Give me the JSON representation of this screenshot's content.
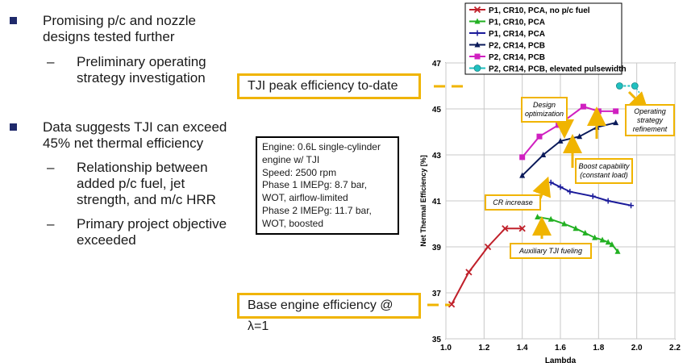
{
  "bullets": {
    "b1": {
      "line1": "Promising p/c and nozzle",
      "line2": "designs tested further"
    },
    "b1a": {
      "line1": "Preliminary operating",
      "line2": "strategy investigation"
    },
    "b2": {
      "line1": "Data suggests TJI can exceed",
      "line2": "45% net thermal efficiency"
    },
    "b2a": {
      "line1": "Relationship between",
      "line2": "added p/c fuel, jet",
      "line3": "strength, and m/c HRR"
    },
    "b2b": {
      "line1": "Primary project objective",
      "line2": "exceeded"
    }
  },
  "dash": "–",
  "specbox": {
    "lines": [
      "Engine: 0.6L single-cylinder",
      "engine w/ TJI",
      "Speed: 2500 rpm",
      "Phase 1 IMEPg: 8.7 bar,",
      "WOT, airflow-limited",
      "Phase 2 IMEPg: 11.7 bar,",
      "WOT, boosted"
    ]
  },
  "callouts": {
    "peak": "TJI peak efficiency to-date",
    "base": "Base engine efficiency @ λ=1"
  },
  "colors": {
    "accent": "#f0b400",
    "bullet": "#1f2a6b"
  },
  "chart_data": {
    "type": "line",
    "xlabel": "Lambda",
    "ylabel": "Net Thermal Efficiency [%]",
    "xlim": [
      1.0,
      2.2
    ],
    "ylim": [
      35,
      47
    ],
    "xticks": [
      "1.0",
      "1.2",
      "1.4",
      "1.6",
      "1.8",
      "2.0",
      "2.2"
    ],
    "yticks": [
      "35",
      "37",
      "39",
      "41",
      "43",
      "45",
      "47"
    ],
    "legend_position": "top",
    "series": [
      {
        "name": "P1, CR10, PCA, no p/c fuel",
        "color": "#c0202a",
        "marker": "x",
        "x": [
          1.03,
          1.12,
          1.22,
          1.31,
          1.4
        ],
        "y": [
          36.5,
          37.9,
          39.0,
          39.8,
          39.8
        ]
      },
      {
        "name": "P1, CR10, PCA",
        "color": "#22b022",
        "marker": "triangle",
        "x": [
          1.48,
          1.55,
          1.62,
          1.68,
          1.73,
          1.78,
          1.82,
          1.85,
          1.87,
          1.9
        ],
        "y": [
          40.3,
          40.2,
          40.0,
          39.8,
          39.6,
          39.4,
          39.3,
          39.2,
          39.1,
          38.8
        ]
      },
      {
        "name": "P1, CR14, PCA",
        "color": "#1a1a9a",
        "marker": "plus",
        "x": [
          1.55,
          1.6,
          1.65,
          1.77,
          1.85,
          1.97
        ],
        "y": [
          41.8,
          41.6,
          41.4,
          41.2,
          41.0,
          40.8
        ]
      },
      {
        "name": "P2, CR14, PCB",
        "color": "#0a1a5a",
        "marker": "triangle",
        "x": [
          1.4,
          1.51,
          1.6,
          1.7,
          1.79,
          1.89
        ],
        "y": [
          42.1,
          43.0,
          43.6,
          43.8,
          44.2,
          44.4
        ]
      },
      {
        "name": "P2, CR14, PCB",
        "color": "#d020c0",
        "marker": "square",
        "x": [
          1.4,
          1.49,
          1.59,
          1.72,
          1.8,
          1.89
        ],
        "y": [
          42.9,
          43.8,
          44.3,
          45.1,
          44.9,
          44.9
        ]
      },
      {
        "name": "P2, CR14, PCB, elevated pulsewidth",
        "color": "#20c0c0",
        "marker": "circle",
        "x": [
          1.91,
          1.99
        ],
        "y": [
          46.0,
          46.0
        ]
      }
    ],
    "annotations": [
      "Design optimization",
      "Operating strategy refinement",
      "Boost capability (constant load)",
      "CR increase",
      "Auxiliary TJI fueling"
    ]
  }
}
